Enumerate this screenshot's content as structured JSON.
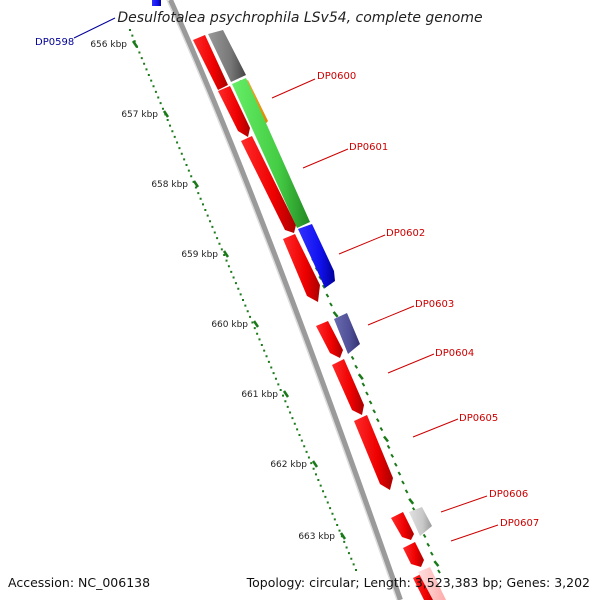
{
  "title": "Desulfotalea psychrophila LSv54, complete genome",
  "footer": {
    "accession": "Accession: NC_006138",
    "summary": "Topology: circular; Length: 3,523,383 bp; Genes: 3,202"
  },
  "colors": {
    "backbone": "#888888",
    "tick": "#1a7a1a",
    "label_red": "#cc0000",
    "label_blue": "#000099"
  },
  "ticks": [
    {
      "label": "656 kbp"
    },
    {
      "label": "657 kbp"
    },
    {
      "label": "658 kbp"
    },
    {
      "label": "659 kbp"
    },
    {
      "label": "660 kbp"
    },
    {
      "label": "661 kbp"
    },
    {
      "label": "662 kbp"
    },
    {
      "label": "663 kbp"
    }
  ],
  "gene_labels": [
    {
      "text": "DP0598",
      "color": "#000099"
    },
    {
      "text": "DP0600",
      "color": "#cc0000"
    },
    {
      "text": "DP0601",
      "color": "#cc0000"
    },
    {
      "text": "DP0602",
      "color": "#cc0000"
    },
    {
      "text": "DP0603",
      "color": "#cc0000"
    },
    {
      "text": "DP0604",
      "color": "#cc0000"
    },
    {
      "text": "DP0605",
      "color": "#cc0000"
    },
    {
      "text": "DP0606",
      "color": "#cc0000"
    },
    {
      "text": "DP0607",
      "color": "#cc0000"
    }
  ]
}
